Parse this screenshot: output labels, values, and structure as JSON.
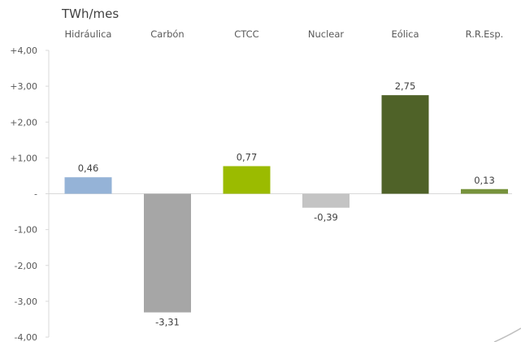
{
  "chart_data": {
    "type": "bar",
    "unit_label": "TWh/mes",
    "categories": [
      "Hidráulica",
      "Carbón",
      "CTCC",
      "Nuclear",
      "Eólica",
      "R.R.Esp."
    ],
    "values": [
      0.46,
      -3.31,
      0.77,
      -0.39,
      2.75,
      0.13
    ],
    "value_labels": [
      "0,46",
      "-3,31",
      "0,77",
      "-0,39",
      "2,75",
      "0,13"
    ],
    "colors": [
      "#95b3d7",
      "#a6a6a6",
      "#9bbb00",
      "#c4c4c4",
      "#4f6228",
      "#77933c"
    ],
    "ylim": [
      -4,
      4
    ],
    "yticks": [
      4,
      3,
      2,
      1,
      0,
      -1,
      -2,
      -3,
      -4
    ],
    "ytick_labels": [
      "+4,00",
      "+3,00",
      "+2,00",
      "+1,00",
      "-",
      "-1,00",
      "-2,00",
      "-3,00",
      "-4,00"
    ],
    "category_axis_position": "top",
    "grid": false,
    "legend": "none"
  }
}
